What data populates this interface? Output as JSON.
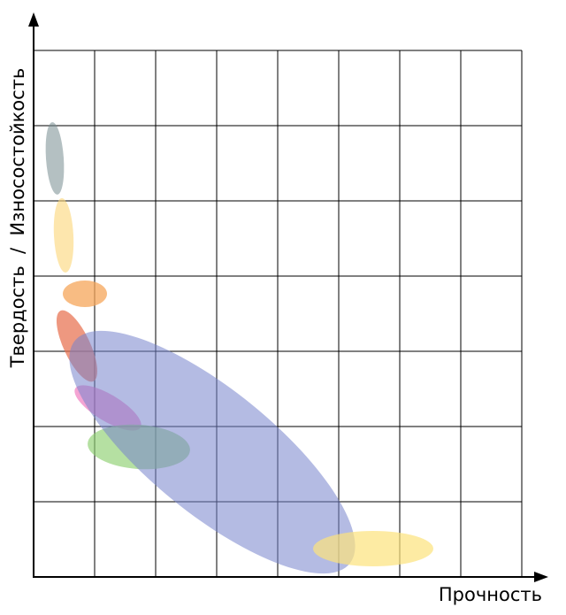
{
  "diagram": {
    "x_axis_label": "Прочность",
    "y_axis_label": "Твердость  /  Износостойкость",
    "grid": true,
    "axis_ticks_labelled": false,
    "region_colors": {
      "gray": "#778c90",
      "yellow_light": "#fcd577",
      "orange": "#f6a55a",
      "red_orange": "#e7704f",
      "magenta": "#ec68b5",
      "green": "#8dcf70",
      "blue": "#7784cc",
      "yellow": "#fce37c"
    }
  }
}
